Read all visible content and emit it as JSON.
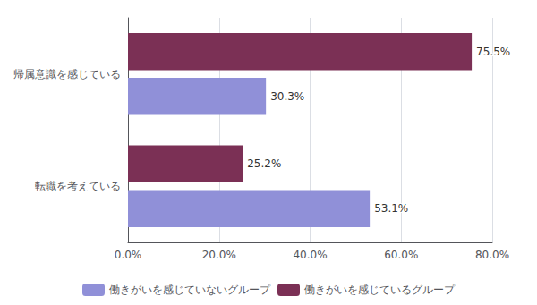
{
  "chart_data": {
    "type": "bar",
    "orientation": "horizontal",
    "categories": [
      "帰属意識を感じている",
      "転職を考えている"
    ],
    "series": [
      {
        "name": "働きがいを感じているグループ",
        "color": "#7B3055",
        "values": [
          75.5,
          25.2
        ],
        "value_labels": [
          "75.5%",
          "25.2%"
        ]
      },
      {
        "name": "働きがいを感じていないグループ",
        "color": "#9090D8",
        "values": [
          30.3,
          53.1
        ],
        "value_labels": [
          "30.3%",
          "53.1%"
        ]
      }
    ],
    "xlim": [
      0,
      80
    ],
    "xticks": [
      {
        "value": 0,
        "label": "0.0%"
      },
      {
        "value": 20,
        "label": "20.0%"
      },
      {
        "value": 40,
        "label": "40.0%"
      },
      {
        "value": 60,
        "label": "60.0%"
      },
      {
        "value": 80,
        "label": "80.0%"
      }
    ],
    "grid": true,
    "data_labels": true,
    "legend": "bottom"
  }
}
